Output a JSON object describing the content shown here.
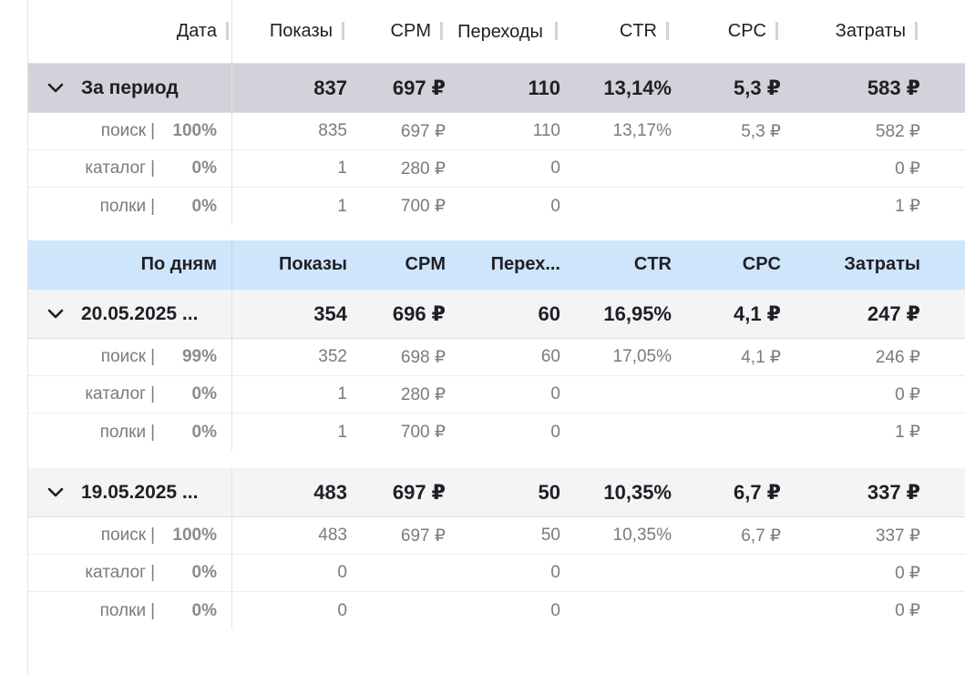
{
  "header": {
    "columns": [
      "Дата",
      "Показы",
      "CPM",
      "Переходы",
      "CTR",
      "CPC",
      "Затраты"
    ]
  },
  "period": {
    "label": "За период",
    "values": [
      "837",
      "697 ₽",
      "110",
      "13,14%",
      "5,3 ₽",
      "583 ₽"
    ],
    "rows": [
      {
        "source": "поиск",
        "share": "100%",
        "values": [
          "835",
          "697 ₽",
          "110",
          "13,17%",
          "5,3 ₽",
          "582 ₽"
        ]
      },
      {
        "source": "каталог",
        "share": "0%",
        "values": [
          "1",
          "280 ₽",
          "0",
          "",
          "",
          "0 ₽"
        ]
      },
      {
        "source": "полки",
        "share": "0%",
        "values": [
          "1",
          "700 ₽",
          "0",
          "",
          "",
          "1 ₽"
        ]
      }
    ]
  },
  "days_header": {
    "columns": [
      "По дням",
      "Показы",
      "CPM",
      "Перех...",
      "CTR",
      "CPC",
      "Затраты"
    ]
  },
  "days": [
    {
      "label": "20.05.2025 ...",
      "values": [
        "354",
        "696 ₽",
        "60",
        "16,95%",
        "4,1 ₽",
        "247 ₽"
      ],
      "rows": [
        {
          "source": "поиск",
          "share": "99%",
          "values": [
            "352",
            "698 ₽",
            "60",
            "17,05%",
            "4,1 ₽",
            "246 ₽"
          ]
        },
        {
          "source": "каталог",
          "share": "0%",
          "values": [
            "1",
            "280 ₽",
            "0",
            "",
            "",
            "0 ₽"
          ]
        },
        {
          "source": "полки",
          "share": "0%",
          "values": [
            "1",
            "700 ₽",
            "0",
            "",
            "",
            "1 ₽"
          ]
        }
      ]
    },
    {
      "label": "19.05.2025 ...",
      "values": [
        "483",
        "697 ₽",
        "50",
        "10,35%",
        "6,7 ₽",
        "337 ₽"
      ],
      "rows": [
        {
          "source": "поиск",
          "share": "100%",
          "values": [
            "483",
            "697 ₽",
            "50",
            "10,35%",
            "6,7 ₽",
            "337 ₽"
          ]
        },
        {
          "source": "каталог",
          "share": "0%",
          "values": [
            "0",
            "",
            "0",
            "",
            "",
            "0 ₽"
          ]
        },
        {
          "source": "полки",
          "share": "0%",
          "values": [
            "0",
            "",
            "0",
            "",
            "",
            "0 ₽"
          ]
        }
      ]
    }
  ],
  "icons": {
    "expand": "chevron-down-icon",
    "column_resize": "column-resize-handle"
  },
  "colors": {
    "period_row": "#d3d2db",
    "days_header": "#cfe5fb",
    "day_row": "#f4f4f6"
  }
}
